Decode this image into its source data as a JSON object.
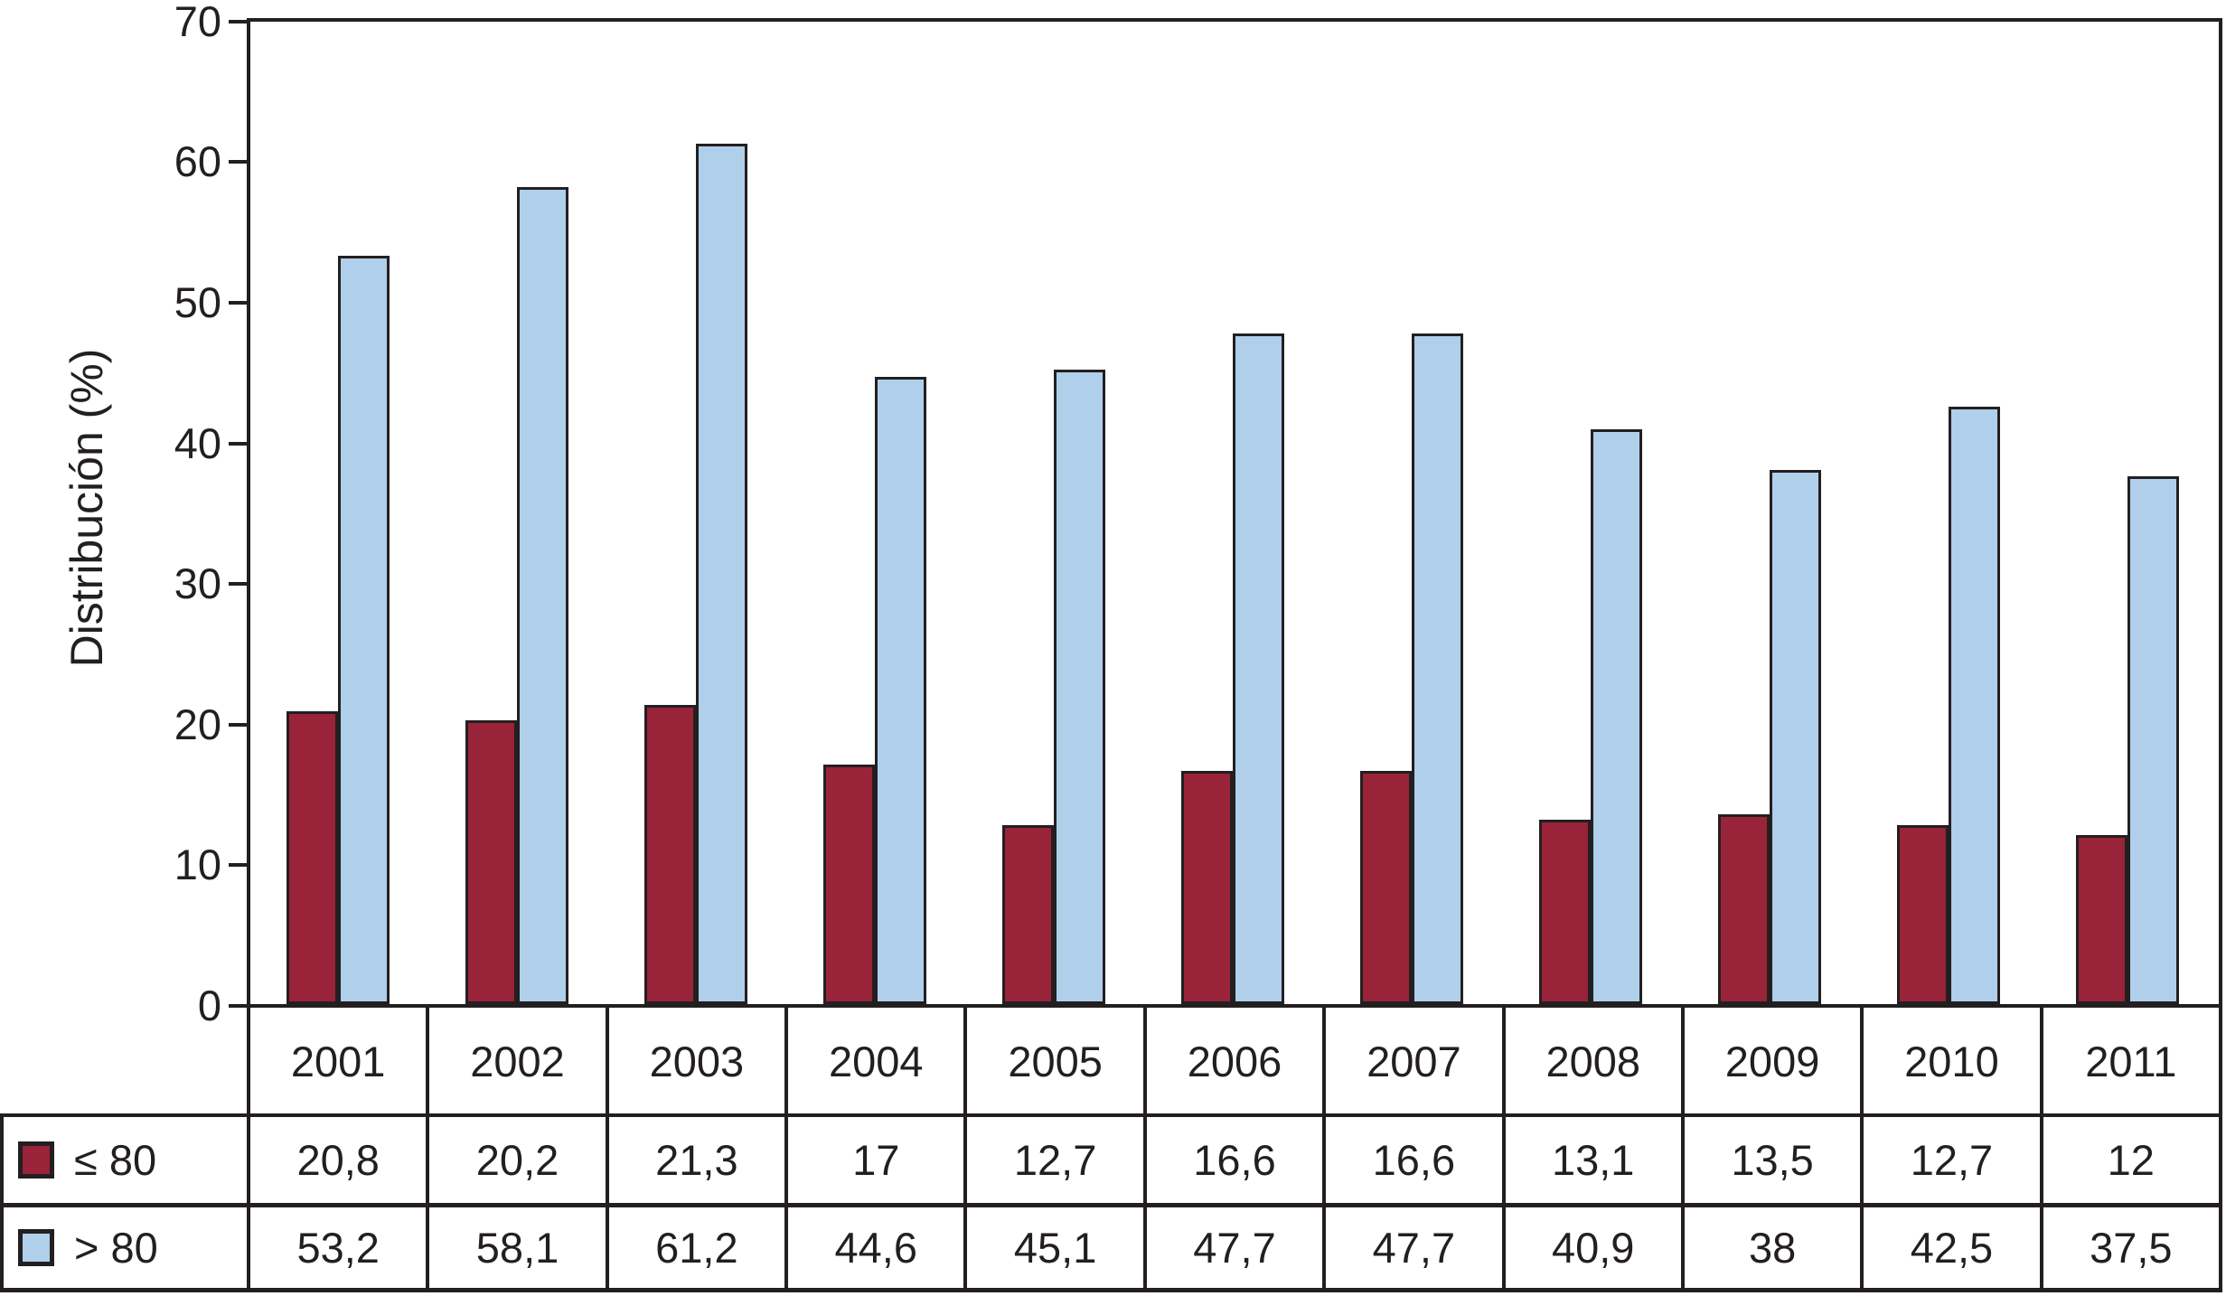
{
  "chart_data": {
    "type": "bar",
    "title": "",
    "xlabel": "",
    "ylabel": "Distribución (%)",
    "ylim": [
      0,
      70
    ],
    "yticks": [
      0,
      10,
      20,
      30,
      40,
      50,
      60,
      70
    ],
    "grid": false,
    "legend_position": "table-left",
    "categories": [
      "2001",
      "2002",
      "2003",
      "2004",
      "2005",
      "2006",
      "2007",
      "2008",
      "2009",
      "2010",
      "2011"
    ],
    "series": [
      {
        "name": "≤ 80",
        "color": "#992338",
        "values": [
          20.8,
          20.2,
          21.3,
          17,
          12.7,
          16.6,
          16.6,
          13.1,
          13.5,
          12.7,
          12
        ],
        "display_values": [
          "20,8",
          "20,2",
          "21,3",
          "17",
          "12,7",
          "16,6",
          "16,6",
          "13,1",
          "13,5",
          "12,7",
          "12"
        ]
      },
      {
        "name": "> 80",
        "color": "#AFCFEA",
        "values": [
          53.2,
          58.1,
          61.2,
          44.6,
          45.1,
          47.7,
          47.7,
          40.9,
          38,
          42.5,
          37.5
        ],
        "display_values": [
          "53,2",
          "58,1",
          "61,2",
          "44,6",
          "45,1",
          "47,7",
          "47,7",
          "40,9",
          "38",
          "42,5",
          "37,5"
        ]
      }
    ],
    "colors": {
      "line": "#231F20",
      "background": "#FFFFFF"
    }
  }
}
